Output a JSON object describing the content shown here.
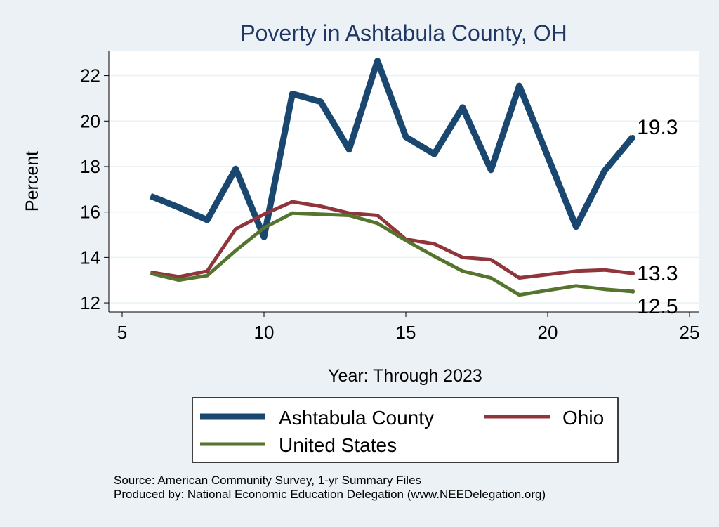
{
  "chart_data": {
    "type": "line",
    "title": "Poverty in Ashtabula County, OH",
    "xlabel": "Year: Through 2023",
    "ylabel": "Percent",
    "xlim": [
      5,
      25
    ],
    "ylim": [
      11.6,
      23.1
    ],
    "xticks": [
      5,
      10,
      15,
      20,
      25
    ],
    "yticks": [
      12,
      14,
      16,
      18,
      20,
      22
    ],
    "grid": true,
    "legend_position": "bottom",
    "series": [
      {
        "name": "Ashtabula County",
        "color": "#1a476f",
        "x": [
          6,
          7,
          8,
          9,
          10,
          11,
          12,
          13,
          14,
          15,
          16,
          17,
          18,
          19,
          21,
          22,
          23
        ],
        "values": [
          16.7,
          16.2,
          15.65,
          17.9,
          14.9,
          21.2,
          20.85,
          18.75,
          22.65,
          19.3,
          18.55,
          20.6,
          17.85,
          21.55,
          15.35,
          17.8,
          19.3
        ],
        "end_label": "19.3"
      },
      {
        "name": "Ohio",
        "color": "#90353b",
        "x": [
          6,
          7,
          8,
          9,
          10,
          11,
          12,
          13,
          14,
          15,
          16,
          17,
          18,
          19,
          21,
          22,
          23
        ],
        "values": [
          13.35,
          13.15,
          13.4,
          15.25,
          15.9,
          16.45,
          16.25,
          15.95,
          15.85,
          14.8,
          14.6,
          14.0,
          13.9,
          13.1,
          13.4,
          13.45,
          13.3
        ],
        "end_label": "13.3"
      },
      {
        "name": "United States",
        "color": "#55752f",
        "x": [
          6,
          7,
          8,
          9,
          10,
          11,
          12,
          13,
          14,
          15,
          16,
          17,
          18,
          19,
          21,
          22,
          23
        ],
        "values": [
          13.3,
          13.0,
          13.2,
          14.3,
          15.3,
          15.95,
          15.9,
          15.85,
          15.5,
          14.75,
          14.05,
          13.4,
          13.1,
          12.35,
          12.75,
          12.6,
          12.5
        ],
        "end_label": "12.5"
      }
    ]
  },
  "footer": {
    "source": "Source: American Community Survey, 1-yr Summary Files",
    "produced_by": "Produced by: National Economic Education Delegation (www.NEEDelegation.org)"
  }
}
